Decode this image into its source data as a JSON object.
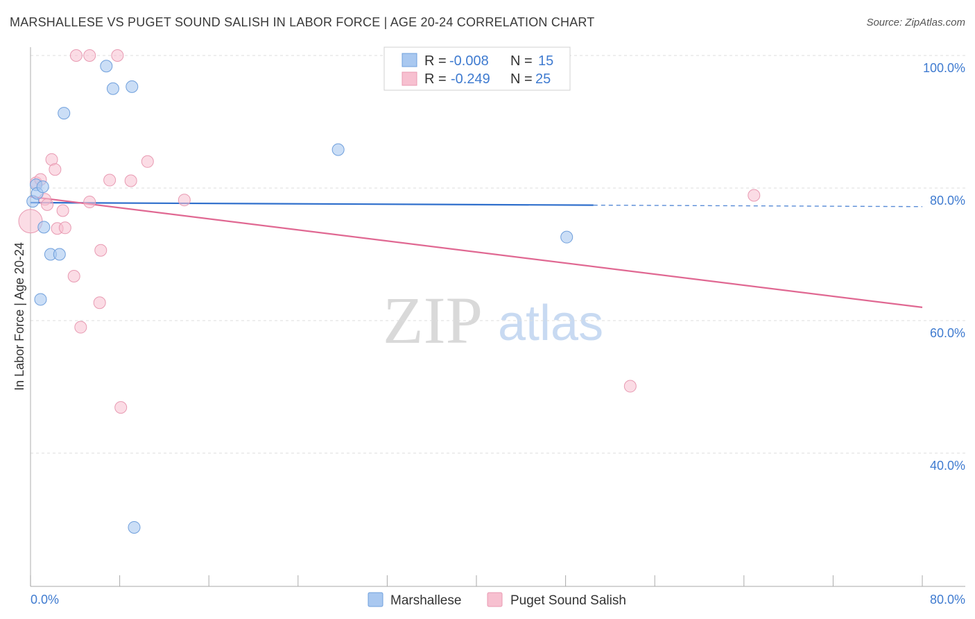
{
  "header": {
    "title": "MARSHALLESE VS PUGET SOUND SALISH IN LABOR FORCE | AGE 20-24 CORRELATION CHART",
    "source": "Source: ZipAtlas.com"
  },
  "watermark": {
    "zip": "ZIP",
    "atlas": "atlas"
  },
  "legend_top": {
    "rows": [
      {
        "r_label": "R =",
        "r_value": "-0.008",
        "n_label": "N =",
        "n_value": "15",
        "color": "#a9c8f0"
      },
      {
        "r_label": "R =",
        "r_value": "-0.249",
        "n_label": "N =",
        "n_value": "25",
        "color": "#f7b8cb"
      }
    ]
  },
  "legend_bottom": {
    "items": [
      {
        "label": "Marshallese",
        "color": "#a9c8f0"
      },
      {
        "label": "Puget Sound Salish",
        "color": "#f7b8cb"
      }
    ]
  },
  "colors": {
    "blue_fill": "#a9c8f0",
    "blue_stroke": "#6f9fdc",
    "blue_line": "#2f6fcc",
    "pink_fill": "#f7c0d0",
    "pink_stroke": "#e89ab2",
    "pink_line": "#e06892",
    "axis_text": "#3f7bd0",
    "grid": "#dddddd"
  },
  "chart_data": {
    "type": "scatter",
    "title": "MARSHALLESE VS PUGET SOUND SALISH IN LABOR FORCE | AGE 20-24 CORRELATION CHART",
    "xlabel": "",
    "ylabel": "In Labor Force | Age 20-24",
    "xlim": [
      0,
      80
    ],
    "ylim": [
      21,
      103
    ],
    "x_tick_labels": [
      "0.0%",
      "80.0%"
    ],
    "y_ticks": [
      40,
      60,
      80,
      100
    ],
    "y_tick_labels": [
      "40.0%",
      "60.0%",
      "80.0%",
      "100.0%"
    ],
    "series": [
      {
        "name": "Marshallese",
        "R": -0.008,
        "N": 15,
        "points": [
          [
            0.2,
            78.0
          ],
          [
            0.5,
            80.5
          ],
          [
            0.6,
            79.2
          ],
          [
            1.1,
            80.2
          ],
          [
            1.2,
            74.1
          ],
          [
            0.9,
            63.2
          ],
          [
            1.8,
            70.0
          ],
          [
            2.6,
            70.0
          ],
          [
            3.0,
            91.3
          ],
          [
            6.8,
            98.4
          ],
          [
            7.4,
            95.0
          ],
          [
            9.1,
            95.3
          ],
          [
            9.3,
            28.8
          ],
          [
            27.6,
            85.8
          ],
          [
            48.1,
            72.6
          ]
        ],
        "trend": {
          "x_start": 0,
          "y_start": 77.8,
          "x_solid_end": 50.5,
          "x_end": 80,
          "y_end": 77.2
        }
      },
      {
        "name": "Puget Sound Salish",
        "R": -0.249,
        "N": 25,
        "points": [
          [
            0.0,
            75.0
          ],
          [
            0.5,
            80.8
          ],
          [
            0.9,
            81.3
          ],
          [
            1.3,
            78.3
          ],
          [
            1.5,
            77.5
          ],
          [
            1.9,
            84.3
          ],
          [
            2.2,
            82.8
          ],
          [
            2.4,
            73.9
          ],
          [
            2.9,
            76.6
          ],
          [
            3.1,
            74.0
          ],
          [
            3.9,
            66.7
          ],
          [
            4.1,
            100.0
          ],
          [
            4.5,
            59.0
          ],
          [
            5.3,
            100.0
          ],
          [
            5.3,
            77.9
          ],
          [
            6.2,
            62.7
          ],
          [
            6.3,
            70.6
          ],
          [
            7.1,
            81.2
          ],
          [
            7.8,
            100.0
          ],
          [
            8.1,
            46.9
          ],
          [
            9.0,
            81.1
          ],
          [
            10.5,
            84.0
          ],
          [
            13.8,
            78.2
          ],
          [
            53.8,
            50.1
          ],
          [
            64.9,
            78.9
          ]
        ],
        "trend": {
          "x_start": 0,
          "y_start": 78.7,
          "x_end": 80,
          "y_end": 62.0
        }
      }
    ]
  }
}
